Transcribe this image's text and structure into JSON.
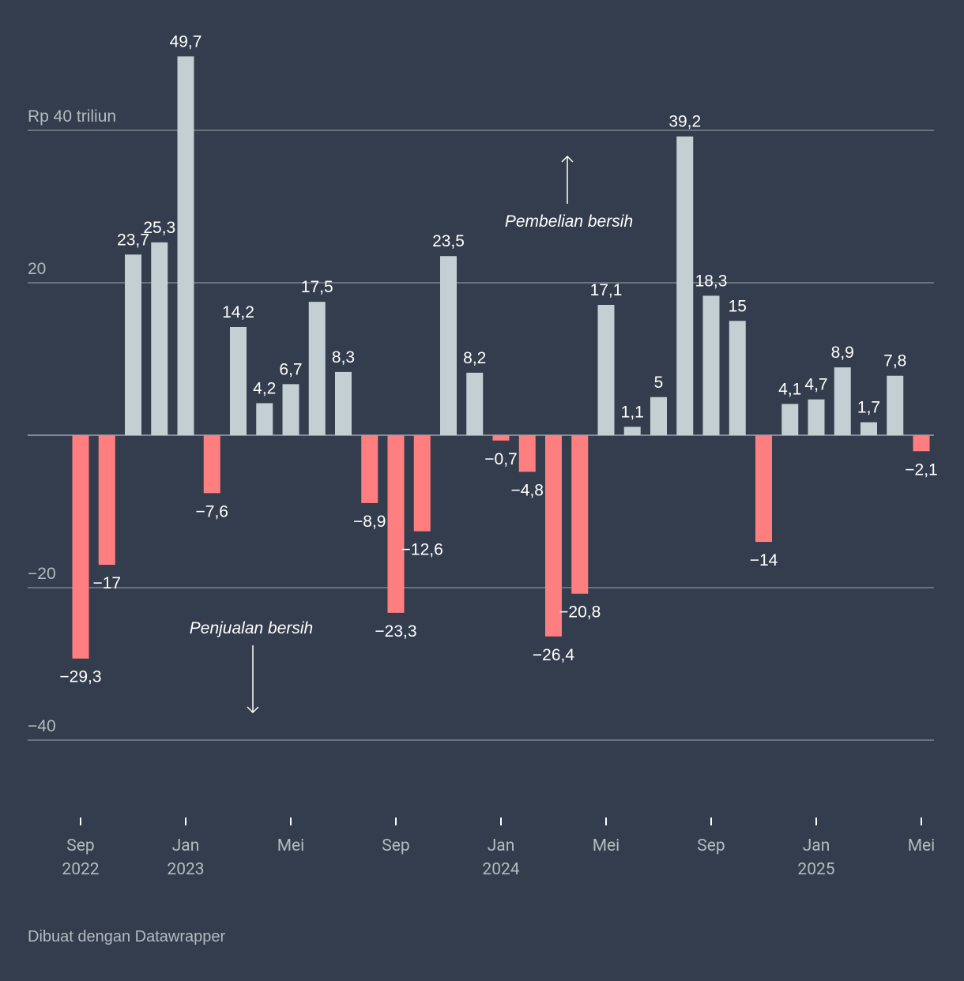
{
  "chart_data": {
    "type": "bar",
    "categories": [
      "Sep 2022",
      null,
      null,
      null,
      "Jan 2023",
      null,
      null,
      null,
      "Mei",
      null,
      null,
      null,
      "Sep",
      null,
      null,
      null,
      "Jan 2024",
      null,
      null,
      null,
      "Mei",
      null,
      null,
      null,
      "Sep",
      null,
      null,
      null,
      "Jan 2025",
      null,
      null,
      null,
      "Mei"
    ],
    "values": [
      -29.3,
      -17,
      23.7,
      25.3,
      49.7,
      -7.6,
      14.2,
      4.2,
      6.7,
      17.5,
      8.3,
      -8.9,
      -23.3,
      -12.6,
      23.5,
      8.2,
      -0.7,
      -4.8,
      -26.4,
      -20.8,
      17.1,
      1.1,
      5,
      39.2,
      18.3,
      15,
      -14,
      4.1,
      4.7,
      8.9,
      1.7,
      7.8,
      -2.1
    ],
    "value_labels": [
      "−29,3",
      "−17",
      "23,7",
      "25,3",
      "49,7",
      "−7,6",
      "14,2",
      "4,2",
      "6,7",
      "17,5",
      "8,3",
      "−8,9",
      "−23,3",
      "−12,6",
      "23,5",
      "8,2",
      "−0,7",
      "−4,8",
      "−26,4",
      "−20,8",
      "17,1",
      "1,1",
      "5",
      "39,2",
      "18,3",
      "15",
      "−14",
      "4,1",
      "4,7",
      "8,9",
      "1,7",
      "7,8",
      "−2,1"
    ],
    "positive_color": "#c3cfd3",
    "negative_color": "#ff7f80",
    "ylim": [
      -40,
      50
    ],
    "yticks": [
      {
        "value": -40,
        "label": "−40"
      },
      {
        "value": -20,
        "label": "−20"
      },
      20,
      {
        "value": 40,
        "label": "Rp 40 triliun"
      }
    ],
    "grid": true,
    "annotations": [
      "Pembelian bersih",
      "Penjualan bersih"
    ],
    "footer": "Dibuat dengan Datawrapper"
  }
}
